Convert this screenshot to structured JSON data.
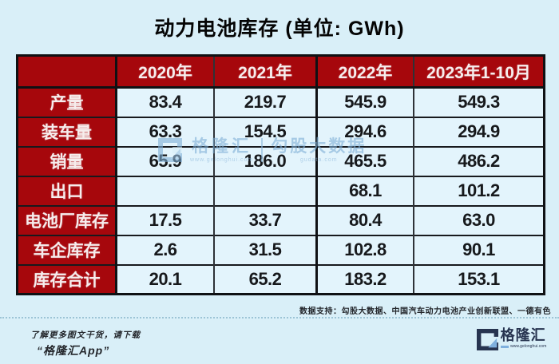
{
  "title": "动力电池库存 (单位: GWh)",
  "table": {
    "columns": [
      "",
      "2020年",
      "2021年",
      "2022年",
      "2023年1-10月"
    ],
    "rows": [
      {
        "label": "产量",
        "values": [
          "83.4",
          "219.7",
          "545.9",
          "549.3"
        ]
      },
      {
        "label": "装车量",
        "values": [
          "63.3",
          "154.5",
          "294.6",
          "294.9"
        ]
      },
      {
        "label": "销量",
        "values": [
          "65.9",
          "186.0",
          "465.5",
          "486.2"
        ]
      },
      {
        "label": "出口",
        "values": [
          "",
          "",
          "68.1",
          "101.2"
        ]
      },
      {
        "label": "电池厂库存",
        "values": [
          "17.5",
          "33.7",
          "80.4",
          "63.0"
        ]
      },
      {
        "label": "车企库存",
        "values": [
          "2.6",
          "31.5",
          "102.8",
          "90.1"
        ]
      },
      {
        "label": "库存合计",
        "values": [
          "20.1",
          "65.2",
          "183.2",
          "153.1"
        ]
      }
    ]
  },
  "chart_data": {
    "type": "table",
    "title": "动力电池库存 (单位: GWh)",
    "unit": "GWh",
    "categories": [
      "2020年",
      "2021年",
      "2022年",
      "2023年1-10月"
    ],
    "series": [
      {
        "name": "产量",
        "values": [
          83.4,
          219.7,
          545.9,
          549.3
        ]
      },
      {
        "name": "装车量",
        "values": [
          63.3,
          154.5,
          294.6,
          294.9
        ]
      },
      {
        "name": "销量",
        "values": [
          65.9,
          186.0,
          465.5,
          486.2
        ]
      },
      {
        "name": "出口",
        "values": [
          null,
          null,
          68.1,
          101.2
        ]
      },
      {
        "name": "电池厂库存",
        "values": [
          17.5,
          33.7,
          80.4,
          63.0
        ]
      },
      {
        "name": "车企库存",
        "values": [
          2.6,
          31.5,
          102.8,
          90.1
        ]
      },
      {
        "name": "库存合计",
        "values": [
          20.1,
          65.2,
          183.2,
          153.1
        ]
      }
    ]
  },
  "watermark": {
    "brand": "格隆汇",
    "brand_url": "www.gelonghui.com",
    "partner": "勾股大数据",
    "partner_url": "gudata.com"
  },
  "footer": {
    "data_support": "数据支持：勾股大数据、中国汽车动力电池产业创新联盟、一德有色",
    "promo_line1": "了解更多图文干货，请下载",
    "promo_line2": "“格隆汇App”",
    "logo_text": "格隆汇",
    "logo_url": "www.gelonghui.com"
  },
  "colors": {
    "page_bg": "#D9EFF8",
    "cell_bg": "#E3F4FC",
    "header_red": "#A6070C",
    "border_dark": "#0F1114",
    "watermark_blue": "#7FAFD6",
    "logo_navy": "#273450",
    "logo_accent_blue": "#7FB0DE"
  }
}
